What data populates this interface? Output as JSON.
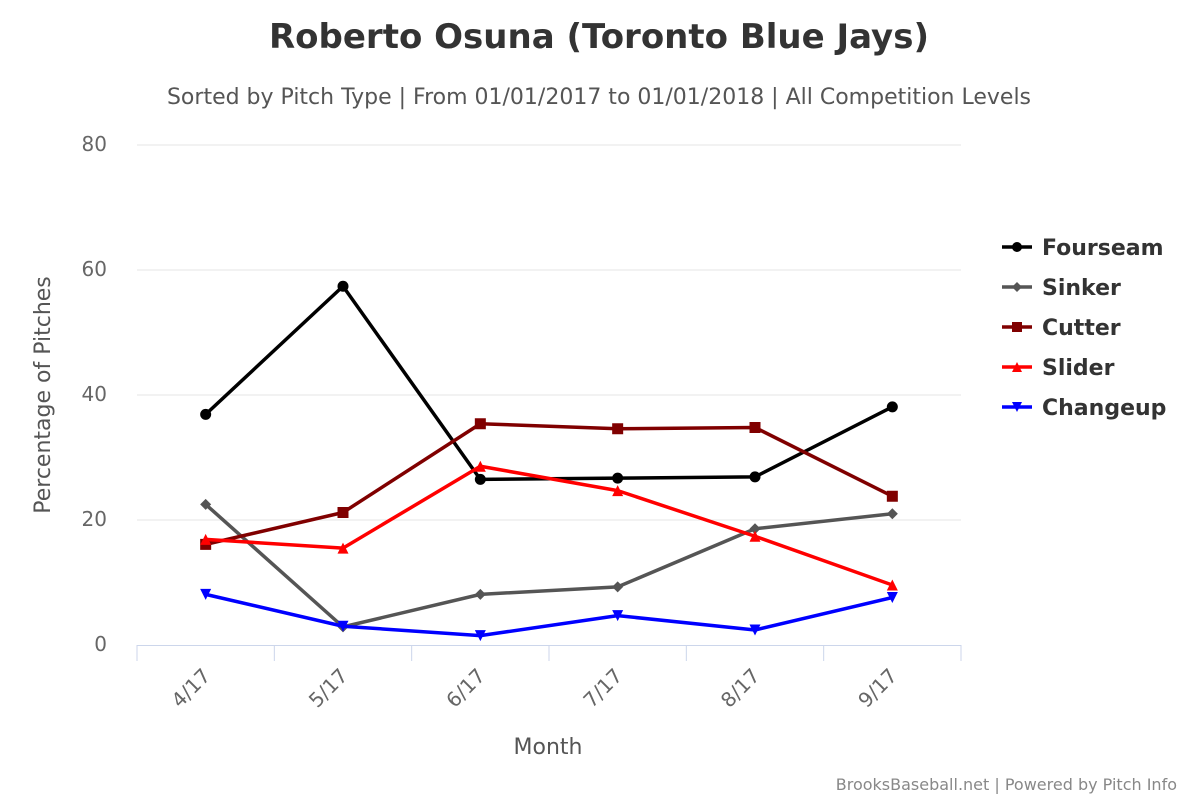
{
  "chart_data": {
    "type": "line",
    "title": "Roberto Osuna (Toronto Blue Jays)",
    "subtitle": "Sorted by Pitch Type | From 01/01/2017 to 01/01/2018 | All Competition Levels",
    "xlabel": "Month",
    "ylabel": "Percentage of Pitches",
    "categories": [
      "4/17",
      "5/17",
      "6/17",
      "7/17",
      "8/17",
      "9/17"
    ],
    "ylim": [
      0,
      80
    ],
    "yticks": [
      "0",
      "20",
      "40",
      "60",
      "80"
    ],
    "grid": true,
    "legend_position": "right",
    "series": [
      {
        "name": "Fourseam",
        "color": "#000000",
        "marker": "circle",
        "values": [
          36.9,
          57.4,
          26.5,
          26.7,
          26.9,
          38.1
        ]
      },
      {
        "name": "Sinker",
        "color": "#555555",
        "marker": "diamond",
        "values": [
          22.5,
          2.9,
          8.1,
          9.3,
          18.6,
          21.0
        ]
      },
      {
        "name": "Cutter",
        "color": "#800000",
        "marker": "square",
        "values": [
          16.1,
          21.2,
          35.4,
          34.6,
          34.8,
          23.8
        ]
      },
      {
        "name": "Slider",
        "color": "#ff0000",
        "marker": "triangle",
        "values": [
          16.9,
          15.5,
          28.6,
          24.7,
          17.4,
          9.6
        ]
      },
      {
        "name": "Changeup",
        "color": "#0000ff",
        "marker": "triangle-down",
        "values": [
          8.1,
          3.0,
          1.5,
          4.7,
          2.4,
          7.6
        ]
      }
    ]
  },
  "credits": "BrooksBaseball.net | Powered by Pitch Info"
}
